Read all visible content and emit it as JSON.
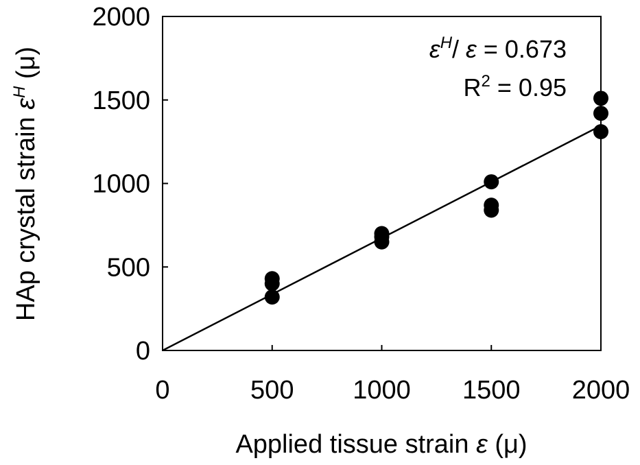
{
  "chart_data": {
    "type": "scatter",
    "xlabel_main": "Applied tissue strain ",
    "xlabel_sym": "ε",
    "xlabel_unit": " (μ)",
    "ylabel_main": "HAp crystal strain ",
    "ylabel_sym": "ε",
    "ylabel_sup": "H",
    "ylabel_unit": " (μ)",
    "xlim": [
      0,
      2000
    ],
    "ylim": [
      0,
      2000
    ],
    "xticks": [
      "0",
      "500",
      "1000",
      "1500",
      "2000"
    ],
    "yticks": [
      "0",
      "500",
      "1000",
      "1500",
      "2000"
    ],
    "xtick_values": [
      0,
      500,
      1000,
      1500,
      2000
    ],
    "ytick_values": [
      0,
      500,
      1000,
      1500,
      2000
    ],
    "grid": false,
    "points": [
      {
        "x": 500,
        "y": 430
      },
      {
        "x": 500,
        "y": 400
      },
      {
        "x": 500,
        "y": 320
      },
      {
        "x": 1000,
        "y": 700
      },
      {
        "x": 1000,
        "y": 680
      },
      {
        "x": 1000,
        "y": 650
      },
      {
        "x": 1500,
        "y": 1010
      },
      {
        "x": 1500,
        "y": 870
      },
      {
        "x": 1500,
        "y": 840
      },
      {
        "x": 2000,
        "y": 1510
      },
      {
        "x": 2000,
        "y": 1420
      },
      {
        "x": 2000,
        "y": 1310
      }
    ],
    "fit_line": {
      "slope": 0.673,
      "intercept": 0
    },
    "annotation": {
      "line1_sym1": "ε",
      "line1_sup": "H",
      "line1_slash": "/ ",
      "line1_sym2": "ε",
      "line1_value": " = 0.673",
      "line2_r": "R",
      "line2_sup": "2",
      "line2_value": " = 0.95"
    }
  }
}
